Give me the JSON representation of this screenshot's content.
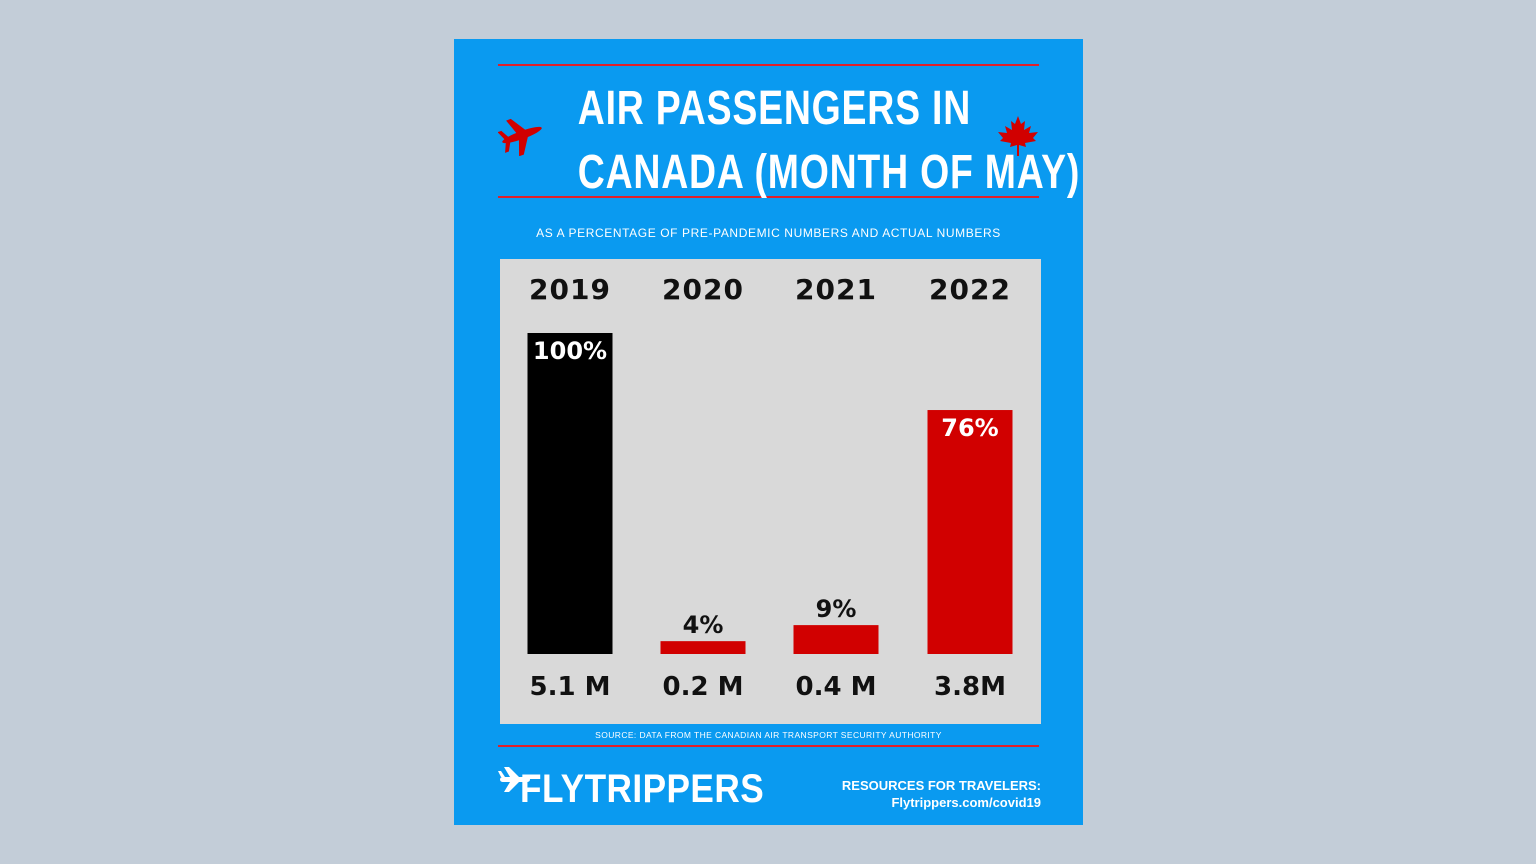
{
  "poster": {
    "title_line1": "AIR PASSENGERS IN",
    "title_line2": "CANADA (MONTH OF MAY)",
    "subtitle": "AS A PERCENTAGE OF PRE-PANDEMIC NUMBERS AND ACTUAL NUMBERS",
    "source": "SOURCE: DATA FROM THE CANADIAN AIR TRANSPORT SECURITY AUTHORITY",
    "brand": "FLYTRIPPERS",
    "resources_label": "RESOURCES FOR TRAVELERS:",
    "resources_url": "Flytrippers.com/covid19",
    "icons": [
      "airplane-icon",
      "maple-leaf-icon",
      "flytrippers-plane-icon"
    ]
  },
  "colors": {
    "background": "#c3cdd8",
    "poster": "#0a9af0",
    "panel": "#d9d9d9",
    "accent_red": "#d10000",
    "bar_2019": "#000000"
  },
  "chart_data": {
    "type": "bar",
    "title": "AIR PASSENGERS IN CANADA (MONTH OF MAY)",
    "subtitle": "AS A PERCENTAGE OF PRE-PANDEMIC NUMBERS AND ACTUAL NUMBERS",
    "categories": [
      "2019",
      "2020",
      "2021",
      "2022"
    ],
    "values": [
      100,
      4,
      9,
      76
    ],
    "value_labels": [
      "100%",
      "4%",
      "9%",
      "76%"
    ],
    "actual_labels": [
      "5.1 M",
      "0.2 M",
      "0.4 M",
      "3.8M"
    ],
    "bar_colors": [
      "#000000",
      "#d10000",
      "#d10000",
      "#d10000"
    ],
    "ylim": [
      0,
      100
    ],
    "xlabel": "",
    "ylabel": "",
    "grid": false
  }
}
